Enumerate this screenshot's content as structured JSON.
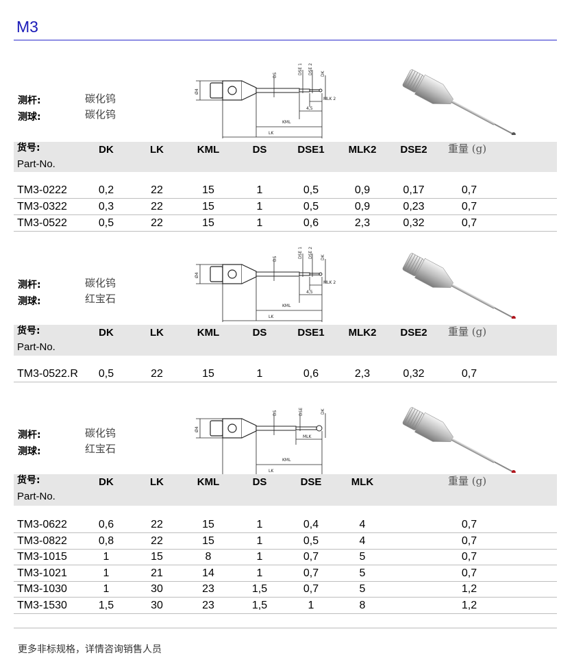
{
  "title": "M3",
  "label_stylus": "测杆:",
  "label_ball": "测球:",
  "header_part_cn": "货号:",
  "header_part_en": "Part-No.",
  "header_weight": "重量 (g)",
  "footer": "更多非标规格，详情咨询销售人员",
  "colors": {
    "title": "#1a1ab8",
    "header_bg": "#e6e6e6",
    "ruby": "#b0141c"
  },
  "sections": [
    {
      "stylus": "碳化钨",
      "ball": "碳化钨",
      "ball_color": "#555555",
      "diagram_labels": {
        "dia": "Ø4",
        "ds": "DS",
        "dse1": "DSE 1",
        "dse2": "DSE 2",
        "dk": "DK",
        "mlk": "MLK 2",
        "step": "4,5",
        "kml": "KML",
        "lk": "LK"
      },
      "columns": [
        "DK",
        "LK",
        "KML",
        "DS",
        "DSE1",
        "MLK2",
        "DSE2"
      ],
      "rows": [
        [
          "TM3-0222",
          "0,2",
          "22",
          "15",
          "1",
          "0,5",
          "0,9",
          "0,17",
          "0,7"
        ],
        [
          "TM3-0322",
          "0,3",
          "22",
          "15",
          "1",
          "0,5",
          "0,9",
          "0,23",
          "0,7"
        ],
        [
          "TM3-0522",
          "0,5",
          "22",
          "15",
          "1",
          "0,6",
          "2,3",
          "0,32",
          "0,7"
        ]
      ]
    },
    {
      "stylus": "碳化钨",
      "ball": "红宝石",
      "ball_color": "#b0141c",
      "diagram_labels": {
        "dia": "Ø4",
        "ds": "DS",
        "dse1": "DSE 1",
        "dse2": "DSE 2",
        "dk": "DK",
        "mlk": "MLK 2",
        "step": "4,5",
        "kml": "KML",
        "lk": "LK"
      },
      "columns": [
        "DK",
        "LK",
        "KML",
        "DS",
        "DSE1",
        "MLK2",
        "DSE2"
      ],
      "rows": [
        [
          "TM3-0522.R",
          "0,5",
          "22",
          "15",
          "1",
          "0,6",
          "2,3",
          "0,32",
          "0,7"
        ]
      ]
    },
    {
      "stylus": "碳化钨",
      "ball": "红宝石",
      "ball_color": "#b0141c",
      "diagram_labels": {
        "dia": "Ø4",
        "ds": "DS",
        "dse1": "DSE",
        "dk": "DK",
        "mlk": "MLK",
        "kml": "KML",
        "lk": "LK"
      },
      "columns": [
        "DK",
        "LK",
        "KML",
        "DS",
        "DSE",
        "MLK"
      ],
      "rows": [
        [
          "TM3-0622",
          "0,6",
          "22",
          "15",
          "1",
          "0,4",
          "4",
          "",
          "0,7"
        ],
        [
          "TM3-0822",
          "0,8",
          "22",
          "15",
          "1",
          "0,5",
          "4",
          "",
          "0,7"
        ],
        [
          "TM3-1015",
          "1",
          "15",
          "8",
          "1",
          "0,7",
          "5",
          "",
          "0,7"
        ],
        [
          "TM3-1021",
          "1",
          "21",
          "14",
          "1",
          "0,7",
          "5",
          "",
          "0,7"
        ],
        [
          "TM3-1030",
          "1",
          "30",
          "23",
          "1,5",
          "0,7",
          "5",
          "",
          "1,2"
        ],
        [
          "TM3-1530",
          "1,5",
          "30",
          "23",
          "1,5",
          "1",
          "8",
          "",
          "1,2"
        ]
      ]
    }
  ]
}
